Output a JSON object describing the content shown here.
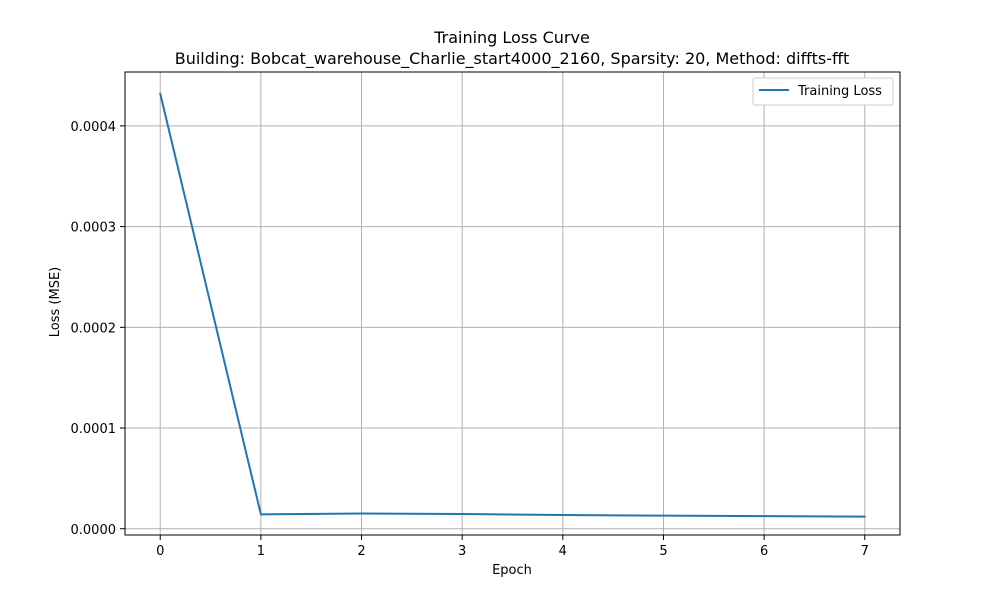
{
  "chart_data": {
    "type": "line",
    "title": "Training Loss Curve",
    "subtitle": "Building: Bobcat_warehouse_Charlie_start4000_2160, Sparsity: 20, Method: diffts-fft",
    "xlabel": "Epoch",
    "ylabel": "Loss (MSE)",
    "xlim": [
      -0.35,
      7.35
    ],
    "ylim": [
      -6.2e-06,
      0.0004535
    ],
    "xticks": [
      0,
      1,
      2,
      3,
      4,
      5,
      6,
      7
    ],
    "xtick_labels": [
      "0",
      "1",
      "2",
      "3",
      "4",
      "5",
      "6",
      "7"
    ],
    "yticks": [
      0,
      0.0001,
      0.0002,
      0.0003,
      0.0004
    ],
    "ytick_labels": [
      "0.0000",
      "0.0001",
      "0.0002",
      "0.0003",
      "0.0004"
    ],
    "grid": true,
    "legend_position": "top-right",
    "series": [
      {
        "name": "Training Loss",
        "color": "#1f77b4",
        "x": [
          0,
          1,
          2,
          3,
          4,
          5,
          6,
          7
        ],
        "y": [
          0.000432,
          1.43e-05,
          1.52e-05,
          1.46e-05,
          1.37e-05,
          1.3e-05,
          1.25e-05,
          1.21e-05
        ]
      }
    ]
  }
}
